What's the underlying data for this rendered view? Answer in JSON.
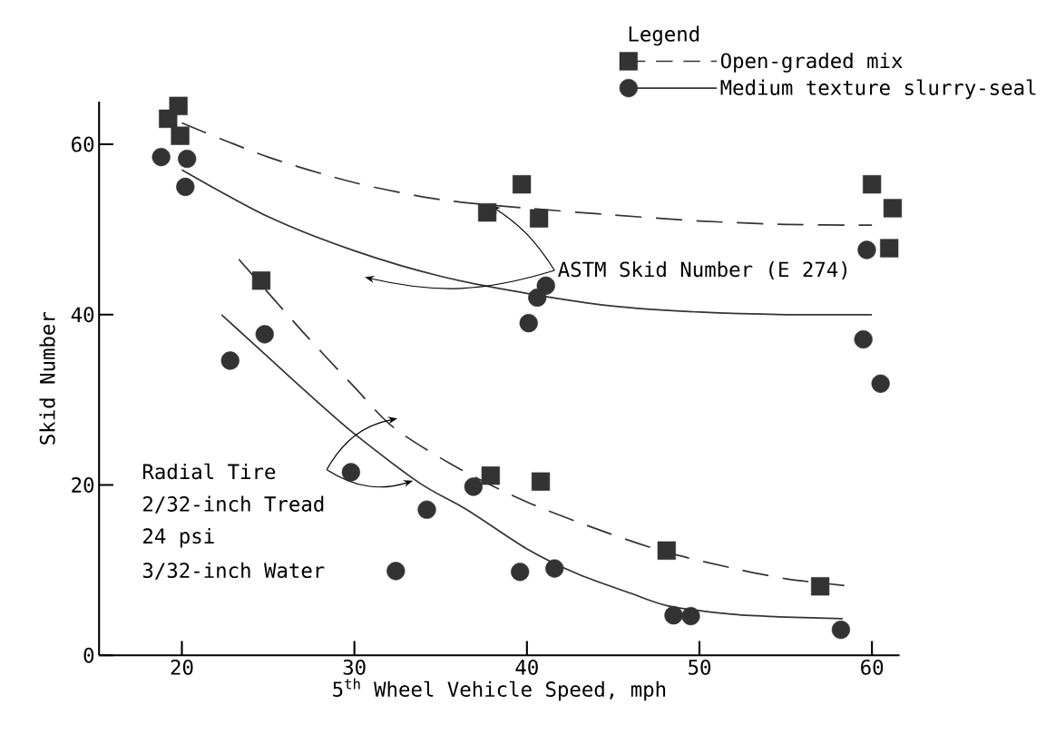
{
  "chart_data": {
    "type": "scatter",
    "xlabel": "5$^{th}$ Wheel Vehicle Speed, mph",
    "ylabel": "Skid Number",
    "legend_title": "Legend",
    "legend": "top right",
    "xlim": [
      15.2,
      61.6
    ],
    "ylim": [
      0,
      65
    ],
    "xticks": [
      20,
      30,
      40,
      50,
      60
    ],
    "yticks": [
      0,
      20,
      40,
      60
    ],
    "annotations": [
      {
        "text": "ASTM Skid Number (E 274)",
        "x": 37.9,
        "y": 52.8
      },
      "Radial Tire",
      "2/32-inch Tread",
      "24 psi",
      "3/32-inch Water"
    ],
    "series": [
      {
        "name": "Open-graded mix",
        "marker": "square",
        "line_style": "dashed",
        "color": "#333333",
        "x": [
          19.2,
          19.8,
          19.9,
          37.7,
          39.7,
          40.7,
          60.0,
          61.2,
          61.0,
          24.6,
          37.9,
          40.8,
          48.1,
          57.0
        ],
        "values": [
          63,
          64.5,
          61,
          52,
          55.3,
          51.3,
          55.3,
          52.5,
          47.8,
          44,
          21.1,
          20.4,
          12.3,
          8.1
        ]
      },
      {
        "name": "Medium texture slurry-seal",
        "marker": "circle",
        "line_style": "solid",
        "color": "#333333",
        "x": [
          18.8,
          20.2,
          20.3,
          40.1,
          40.6,
          41.1,
          59.7,
          59.5,
          60.5,
          22.8,
          24.8,
          29.8,
          32.4,
          34.2,
          36.9,
          39.6,
          41.6,
          48.5,
          49.5,
          58.2
        ],
        "values": [
          58.5,
          55,
          58.3,
          39,
          42,
          43.4,
          47.6,
          37.1,
          31.9,
          34.6,
          37.7,
          21.5,
          9.9,
          17.1,
          19.8,
          9.8,
          10.2,
          4.7,
          4.6,
          3.0
        ]
      },
      {
        "type": "line",
        "line_style": "dashed",
        "color": "#333333",
        "x": [
          20,
          25,
          30,
          35,
          40,
          45,
          50,
          55,
          60
        ],
        "values": [
          62.5,
          58.5,
          55.5,
          53.5,
          52.5,
          51.7,
          51,
          50.6,
          50.5
        ]
      },
      {
        "type": "line",
        "line_style": "solid",
        "color": "#333333",
        "x": [
          20,
          25,
          30,
          35,
          40,
          45,
          50,
          55,
          60
        ],
        "values": [
          57,
          51.5,
          47.5,
          44.5,
          42.5,
          41,
          40.3,
          40,
          40
        ]
      },
      {
        "type": "line",
        "line_style": "dashed",
        "color": "#333333",
        "x": [
          23.3,
          27,
          30,
          32.3,
          36,
          40,
          44.5,
          48.1,
          52,
          55,
          58.4
        ],
        "values": [
          46.5,
          38,
          31.5,
          26.7,
          22,
          18,
          14.5,
          12.1,
          10.2,
          9,
          8.2
        ]
      },
      {
        "type": "line",
        "line_style": "solid",
        "color": "#333333",
        "x": [
          22.3,
          25,
          28,
          30,
          33.8,
          36.6,
          40,
          43,
          46,
          48.2,
          52,
          55,
          58.3
        ],
        "values": [
          40,
          35,
          29.5,
          26,
          20.2,
          17,
          12.5,
          9.5,
          7.3,
          5.8,
          4.8,
          4.5,
          4.3
        ]
      }
    ]
  }
}
